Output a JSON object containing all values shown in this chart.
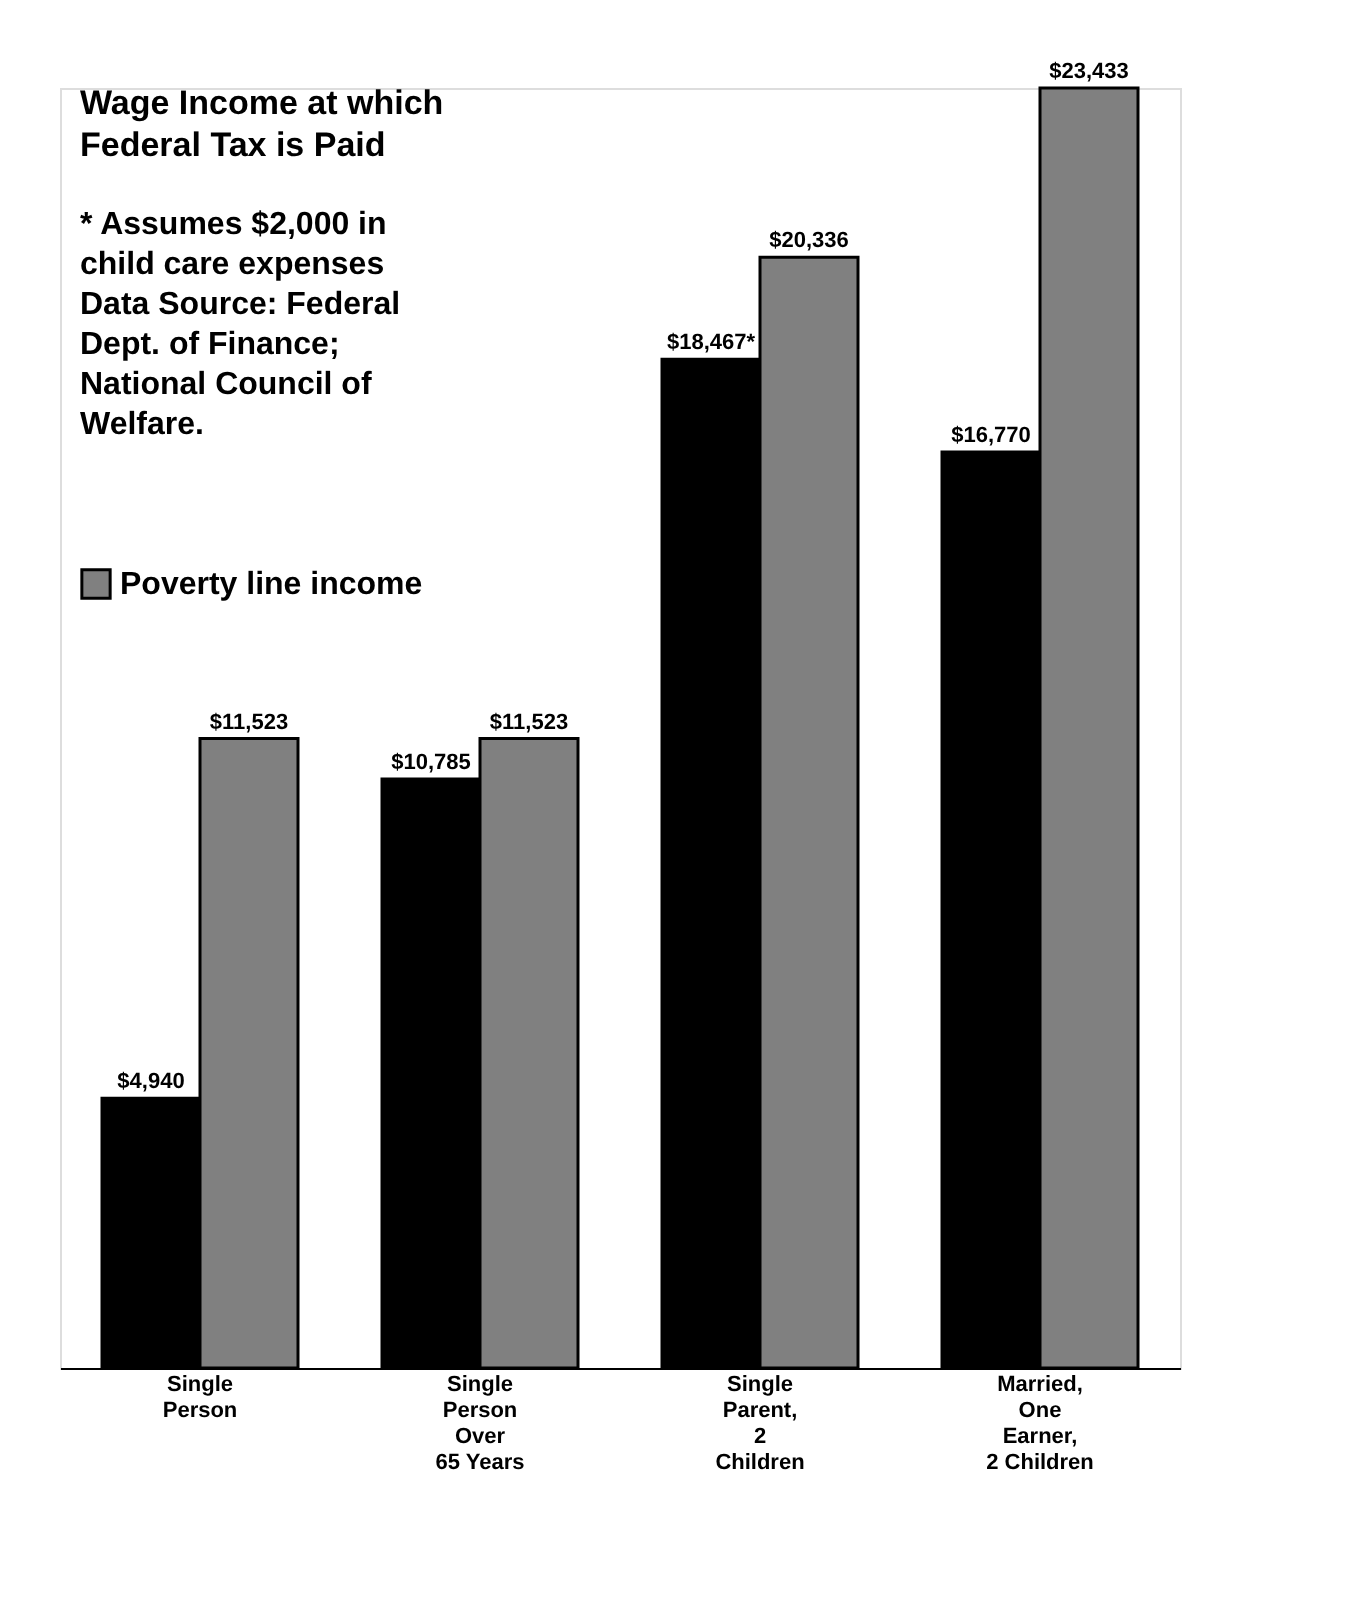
{
  "chart_data": {
    "type": "bar",
    "title": "Wage Income at which Federal Tax is Paid",
    "annotations": [
      "* Assumes $2,000 in child care expenses",
      "Data Source: Federal Dept. of Finance; National Council of Welfare."
    ],
    "categories": [
      "Single\nPerson",
      "Single\nPerson\nOver\n65 Years",
      "Single\nParent,\n2\nChildren",
      "Married,\nOne\nEarner,\n2 Children"
    ],
    "series": [
      {
        "color": "#000000",
        "values": [
          4940,
          10785,
          18467,
          16770
        ],
        "value_labels": [
          "$4,940",
          "$10,785",
          "$18,467*",
          "$16,770"
        ]
      },
      {
        "name": "Poverty line income",
        "color": "#808080",
        "values": [
          11523,
          11523,
          20336,
          23433
        ],
        "value_labels": [
          "$11,523",
          "$11,523",
          "$20,336",
          "$23,433"
        ]
      }
    ],
    "legend": "top left",
    "tick_labels": "x",
    "grid": false
  }
}
